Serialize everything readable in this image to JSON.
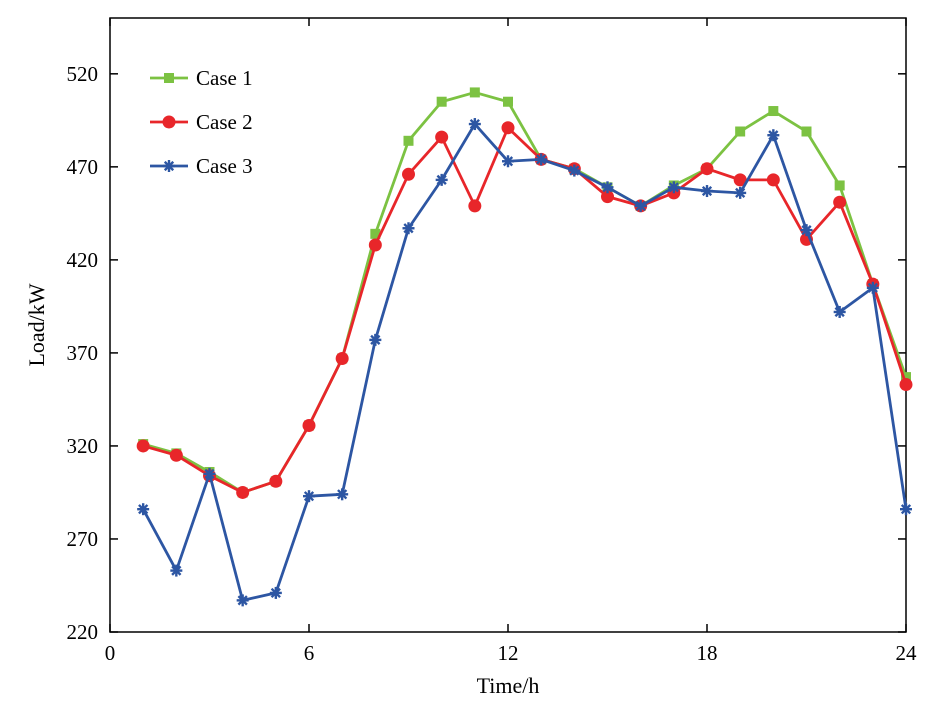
{
  "chart_data": {
    "type": "line",
    "xlabel": "Time/h",
    "ylabel": "Load/kW",
    "xlim": [
      0,
      24
    ],
    "ylim": [
      220,
      550
    ],
    "xticks": [
      0,
      6,
      12,
      18,
      24
    ],
    "yticks": [
      220,
      270,
      320,
      370,
      420,
      470,
      520
    ],
    "grid": false,
    "legend_position": "top-left",
    "x": [
      1,
      2,
      3,
      4,
      5,
      6,
      7,
      8,
      9,
      10,
      11,
      12,
      13,
      14,
      15,
      16,
      17,
      18,
      19,
      20,
      21,
      22,
      23,
      24
    ],
    "series": [
      {
        "name": "Case 1",
        "color": "#7cc242",
        "marker": "square",
        "values": [
          321,
          316,
          306,
          295,
          301,
          331,
          367,
          434,
          484,
          505,
          510,
          505,
          474,
          469,
          459,
          449,
          460,
          469,
          489,
          500,
          489,
          460,
          407,
          357
        ]
      },
      {
        "name": "Case 2",
        "color": "#e8262a",
        "marker": "circle",
        "values": [
          320,
          315,
          304,
          295,
          301,
          331,
          367,
          428,
          466,
          486,
          449,
          491,
          474,
          469,
          454,
          449,
          456,
          469,
          463,
          463,
          431,
          451,
          407,
          353
        ]
      },
      {
        "name": "Case 3",
        "color": "#2d56a3",
        "marker": "asterisk",
        "values": [
          286,
          253,
          305,
          237,
          241,
          293,
          294,
          377,
          437,
          463,
          493,
          473,
          474,
          468,
          459,
          449,
          459,
          457,
          456,
          487,
          436,
          392,
          405,
          286
        ]
      }
    ]
  }
}
